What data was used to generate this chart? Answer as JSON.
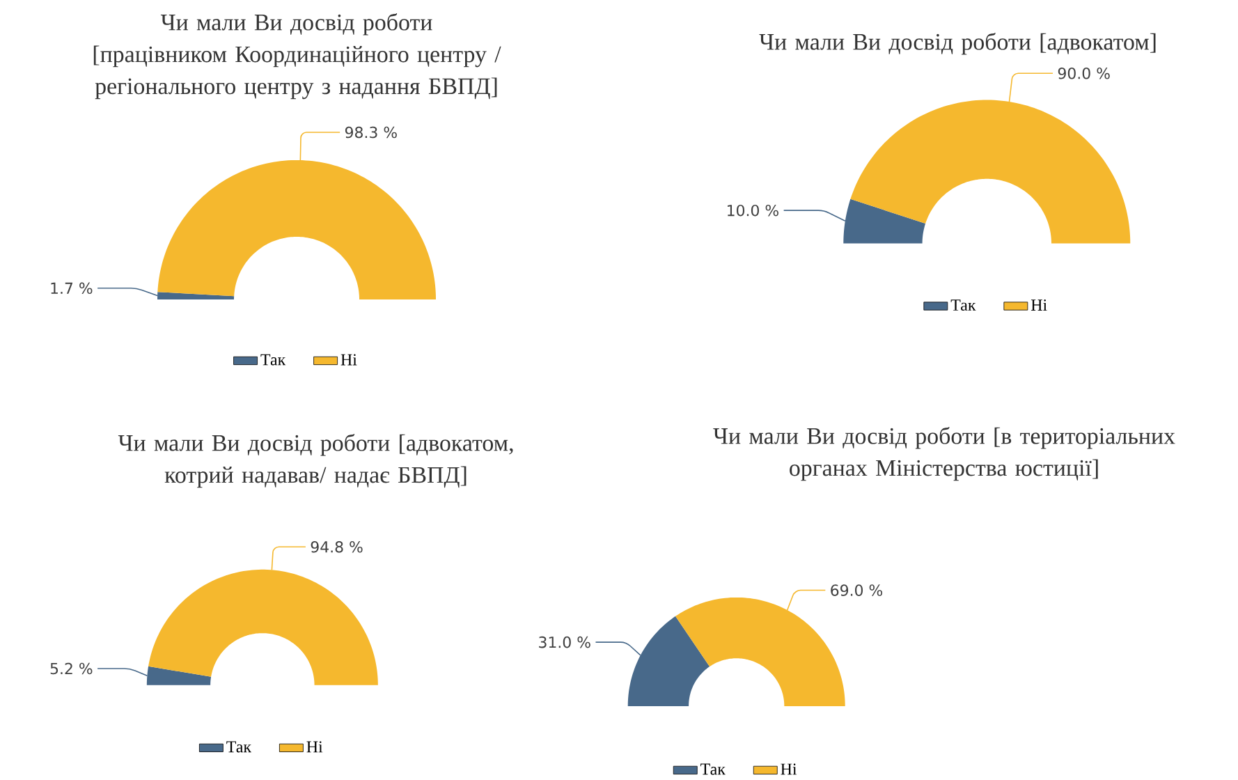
{
  "chart_data": [
    {
      "type": "donut",
      "title": "Чи мали Ви досвід роботи [працівником Координаційного центру / регіонального центру з надання БВПД]",
      "categories": [
        "Так",
        "Ні"
      ],
      "values": [
        1.7,
        98.3
      ],
      "colors": [
        "#48698a",
        "#f5b82e"
      ],
      "value_labels": [
        "1.7 %",
        "98.3 %"
      ],
      "legend": "bottom"
    },
    {
      "type": "donut",
      "title": "Чи мали Ви досвід роботи [адвокатом]",
      "categories": [
        "Так",
        "Ні"
      ],
      "values": [
        10.0,
        90.0
      ],
      "colors": [
        "#48698a",
        "#f5b82e"
      ],
      "value_labels": [
        "10.0 %",
        "90.0 %"
      ],
      "legend": "bottom"
    },
    {
      "type": "donut",
      "title": "Чи мали Ви досвід роботи [адвокатом, котрий надавав/ надає БВПД]",
      "categories": [
        "Так",
        "Ні"
      ],
      "values": [
        5.2,
        94.8
      ],
      "colors": [
        "#48698a",
        "#f5b82e"
      ],
      "value_labels": [
        "5.2 %",
        "94.8 %"
      ],
      "legend": "bottom"
    },
    {
      "type": "donut",
      "title": "Чи мали Ви досвід роботи [в територіальних органах Міністерства юстиції]",
      "categories": [
        "Так",
        "Ні"
      ],
      "values": [
        31.0,
        69.0
      ],
      "colors": [
        "#48698a",
        "#f5b82e"
      ],
      "value_labels": [
        "31.0 %",
        "69.0 %"
      ],
      "legend": "bottom"
    }
  ]
}
